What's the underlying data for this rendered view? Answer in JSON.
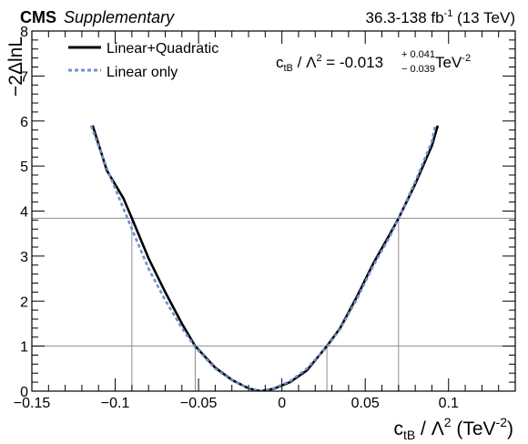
{
  "header": {
    "experiment": "CMS",
    "tag": "Supplementary",
    "lumi_prefix": "36.3-138 fb",
    "lumi_sup": "-1",
    "lumi_suffix": " (13 TeV)"
  },
  "result": {
    "param_main": "c",
    "param_sub": "tB",
    "param_mid": " / Λ",
    "param_sup": "2",
    "eq_value": " = -0.013",
    "err_up": "+ 0.041",
    "err_down": "− 0.039",
    "unit_main": " TeV",
    "unit_sup": "-2"
  },
  "chart_data": {
    "type": "line",
    "title": "",
    "xlabel": {
      "main": "c",
      "sub": "tB",
      "mid": " / Λ",
      "sup": "2",
      "unit_open": " (TeV",
      "unit_sup": "-2",
      "unit_close": ")"
    },
    "ylabel": "−2ΔlnL",
    "xlim": [
      -0.15,
      0.14
    ],
    "ylim": [
      0,
      8
    ],
    "x_ticks": [
      {
        "value": -0.15,
        "label": "−0.15"
      },
      {
        "value": -0.1,
        "label": "−0.1"
      },
      {
        "value": -0.05,
        "label": "−0.05"
      },
      {
        "value": 0,
        "label": "0"
      },
      {
        "value": 0.05,
        "label": "0.05"
      },
      {
        "value": 0.1,
        "label": "0.1"
      }
    ],
    "y_ticks": [
      {
        "value": 0,
        "label": "0"
      },
      {
        "value": 1,
        "label": "1"
      },
      {
        "value": 2,
        "label": "2"
      },
      {
        "value": 3,
        "label": "3"
      },
      {
        "value": 4,
        "label": "4"
      },
      {
        "value": 5,
        "label": "5"
      },
      {
        "value": 6,
        "label": "6"
      },
      {
        "value": 7,
        "label": "7"
      },
      {
        "value": 8,
        "label": "8"
      }
    ],
    "legend_position": "top-left",
    "series": [
      {
        "name": "Linear+Quadratic",
        "color": "#000000",
        "style": "solid",
        "x": [
          -0.1135,
          -0.105,
          -0.095,
          -0.09,
          -0.08,
          -0.07,
          -0.06,
          -0.052,
          -0.04,
          -0.03,
          -0.02,
          -0.013,
          -0.005,
          0.005,
          0.015,
          0.027,
          0.035,
          0.045,
          0.055,
          0.065,
          0.07,
          0.08,
          0.09,
          0.0935
        ],
        "y": [
          5.9,
          4.9,
          4.28,
          3.84,
          2.95,
          2.2,
          1.5,
          1.0,
          0.52,
          0.25,
          0.06,
          0.0,
          0.05,
          0.2,
          0.46,
          1.0,
          1.4,
          2.1,
          2.85,
          3.5,
          3.84,
          4.6,
          5.45,
          5.9
        ]
      },
      {
        "name": "Linear only",
        "color": "#6f8fcf",
        "style": "dashed",
        "x": [
          -0.1145,
          -0.105,
          -0.095,
          -0.09,
          -0.08,
          -0.07,
          -0.06,
          -0.052,
          -0.04,
          -0.03,
          -0.02,
          -0.013,
          -0.005,
          0.005,
          0.015,
          0.027,
          0.035,
          0.045,
          0.055,
          0.065,
          0.07,
          0.08,
          0.09,
          0.092
        ],
        "y": [
          5.9,
          4.95,
          4.05,
          3.6,
          2.72,
          2.02,
          1.4,
          0.98,
          0.5,
          0.24,
          0.06,
          0.0,
          0.06,
          0.22,
          0.5,
          0.98,
          1.38,
          2.05,
          2.8,
          3.45,
          3.84,
          4.65,
          5.55,
          5.9
        ]
      }
    ],
    "reference_lines": {
      "horizontal": [
        1,
        3.84
      ],
      "vertical": [
        {
          "x": -0.09,
          "y_top": 3.84
        },
        {
          "x": -0.052,
          "y_top": 1
        },
        {
          "x": 0.027,
          "y_top": 1
        },
        {
          "x": 0.07,
          "y_top": 3.84
        }
      ],
      "color": "#8c8c8c"
    }
  }
}
